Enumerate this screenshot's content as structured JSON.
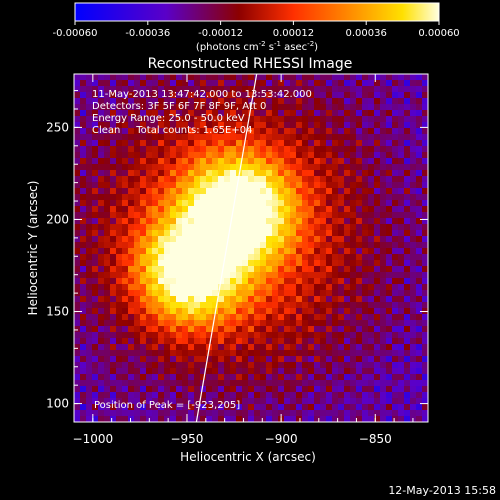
{
  "colorbar": {
    "ticks": [
      "-0.00060",
      "-0.00036",
      "-0.00012",
      "0.00012",
      "0.00036",
      "0.00060"
    ],
    "range": [
      -0.0006,
      0.0006
    ],
    "unit_label_parts": [
      "(photons cm",
      "-2",
      " s",
      "-1",
      " asec",
      "-2",
      ")"
    ]
  },
  "chart_data": {
    "type": "heatmap",
    "title": "Reconstructed RHESSI Image",
    "xlabel": "Heliocentric X (arcsec)",
    "ylabel": "Heliocentric Y (arcsec)",
    "xlim": [
      -1010,
      -822
    ],
    "ylim": [
      90,
      279
    ],
    "xticks": [
      "-1000",
      "-950",
      "-900",
      "-850"
    ],
    "yticks": [
      "100",
      "150",
      "200",
      "250"
    ],
    "colormap": [
      "#0000ff",
      "#5a00c8",
      "#8c0000",
      "#ff3000",
      "#ff9a00",
      "#ffe000",
      "#ffffe0"
    ],
    "sources": [
      {
        "x": -923,
        "y": 205,
        "peak": 1.0
      },
      {
        "x": -948,
        "y": 172,
        "peak": 0.92
      }
    ],
    "limb_line": {
      "points": [
        [
          -945,
          90
        ],
        [
          -913,
          279
        ]
      ]
    },
    "info_lines": [
      "11-May-2013 13:47:42.000 to 13:53:42.000",
      "Detectors: 3F 5F 6F 7F 8F 9F, Att 0",
      "Energy Range: 25.0 - 50.0 keV",
      "Clean     Total counts: 1.65E+04"
    ],
    "peak_label": "Position of Peak = [-923,205]"
  },
  "footer": {
    "timestamp": "12-May-2013 15:58"
  }
}
